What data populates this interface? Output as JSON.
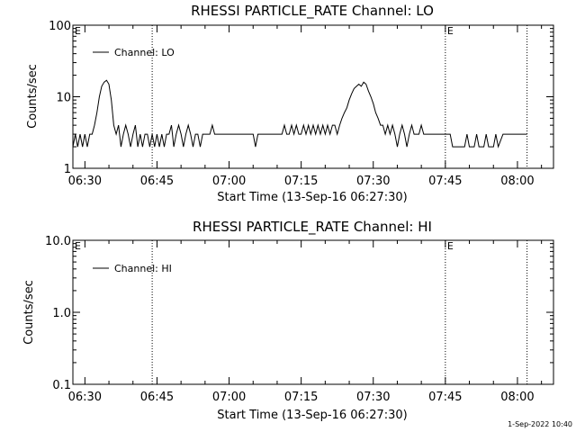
{
  "footer_timestamp": "1-Sep-2022 10:40",
  "chart_data": [
    {
      "type": "line",
      "title": "RHESSI PARTICLE_RATE Channel: LO",
      "xlabel": "Start Time (13-Sep-16 06:27:30)",
      "ylabel": "Counts/sec",
      "yscale": "log",
      "ylim": [
        1,
        100
      ],
      "y_ticks": [
        "1",
        "10",
        "100"
      ],
      "x_ticks": [
        "06:30",
        "06:45",
        "07:00",
        "07:15",
        "07:30",
        "07:45",
        "08:00"
      ],
      "xlim": [
        "06:27:30",
        "08:07:30"
      ],
      "grid": false,
      "legend": "top-left",
      "markers": [
        {
          "label": "E",
          "time": "06:27:30"
        },
        {
          "label": "",
          "time": "06:44:00"
        },
        {
          "label": "E",
          "time": "07:45:00"
        },
        {
          "label": "",
          "time": "08:02:00"
        }
      ],
      "series": [
        {
          "name": "Channel: LO",
          "color": "#000000",
          "points": [
            [
              "06:27:30",
              2
            ],
            [
              "06:28:00",
              3
            ],
            [
              "06:28:30",
              2
            ],
            [
              "06:29:00",
              3
            ],
            [
              "06:29:30",
              2
            ],
            [
              "06:30:00",
              3
            ],
            [
              "06:30:30",
              2
            ],
            [
              "06:31:00",
              3
            ],
            [
              "06:31:30",
              3
            ],
            [
              "06:32:00",
              4
            ],
            [
              "06:32:30",
              6
            ],
            [
              "06:33:00",
              10
            ],
            [
              "06:33:30",
              14
            ],
            [
              "06:34:00",
              16
            ],
            [
              "06:34:30",
              17
            ],
            [
              "06:35:00",
              15
            ],
            [
              "06:35:30",
              9
            ],
            [
              "06:36:00",
              4
            ],
            [
              "06:36:30",
              3
            ],
            [
              "06:37:00",
              4
            ],
            [
              "06:37:30",
              2
            ],
            [
              "06:38:00",
              3
            ],
            [
              "06:38:30",
              4
            ],
            [
              "06:39:00",
              3
            ],
            [
              "06:39:30",
              2
            ],
            [
              "06:40:00",
              3
            ],
            [
              "06:40:30",
              4
            ],
            [
              "06:41:00",
              2
            ],
            [
              "06:41:30",
              3
            ],
            [
              "06:42:00",
              2
            ],
            [
              "06:42:30",
              3
            ],
            [
              "06:43:00",
              3
            ],
            [
              "06:43:30",
              2
            ],
            [
              "06:44:00",
              3
            ],
            [
              "06:44:30",
              2
            ],
            [
              "06:45:00",
              3
            ],
            [
              "06:45:30",
              2
            ],
            [
              "06:46:00",
              3
            ],
            [
              "06:46:30",
              2
            ],
            [
              "06:47:00",
              3
            ],
            [
              "06:47:30",
              3
            ],
            [
              "06:48:00",
              4
            ],
            [
              "06:48:30",
              2
            ],
            [
              "06:49:00",
              3
            ],
            [
              "06:49:30",
              4
            ],
            [
              "06:50:00",
              3
            ],
            [
              "06:50:30",
              2
            ],
            [
              "06:51:00",
              3
            ],
            [
              "06:51:30",
              4
            ],
            [
              "06:52:00",
              3
            ],
            [
              "06:52:30",
              2
            ],
            [
              "06:53:00",
              3
            ],
            [
              "06:53:30",
              3
            ],
            [
              "06:54:00",
              2
            ],
            [
              "06:54:30",
              3
            ],
            [
              "06:55:00",
              3
            ],
            [
              "06:55:30",
              3
            ],
            [
              "06:56:00",
              3
            ],
            [
              "06:56:30",
              4
            ],
            [
              "06:57:00",
              3
            ],
            [
              "06:57:30",
              3
            ],
            [
              "06:58:00",
              3
            ],
            [
              "06:58:30",
              3
            ],
            [
              "06:59:00",
              3
            ],
            [
              "07:00:00",
              3
            ],
            [
              "07:01:00",
              3
            ],
            [
              "07:02:00",
              3
            ],
            [
              "07:03:00",
              3
            ],
            [
              "07:04:00",
              3
            ],
            [
              "07:05:00",
              3
            ],
            [
              "07:05:30",
              2
            ],
            [
              "07:06:00",
              3
            ],
            [
              "07:07:00",
              3
            ],
            [
              "07:08:00",
              3
            ],
            [
              "07:09:00",
              3
            ],
            [
              "07:10:00",
              3
            ],
            [
              "07:11:00",
              3
            ],
            [
              "07:11:30",
              4
            ],
            [
              "07:12:00",
              3
            ],
            [
              "07:12:30",
              3
            ],
            [
              "07:13:00",
              4
            ],
            [
              "07:13:30",
              3
            ],
            [
              "07:14:00",
              4
            ],
            [
              "07:14:30",
              3
            ],
            [
              "07:15:00",
              3
            ],
            [
              "07:15:30",
              4
            ],
            [
              "07:16:00",
              3
            ],
            [
              "07:16:30",
              4
            ],
            [
              "07:17:00",
              3
            ],
            [
              "07:17:30",
              4
            ],
            [
              "07:18:00",
              3
            ],
            [
              "07:18:30",
              4
            ],
            [
              "07:19:00",
              3
            ],
            [
              "07:19:30",
              4
            ],
            [
              "07:20:00",
              3
            ],
            [
              "07:20:30",
              4
            ],
            [
              "07:21:00",
              3
            ],
            [
              "07:21:30",
              4
            ],
            [
              "07:22:00",
              4
            ],
            [
              "07:22:30",
              3
            ],
            [
              "07:23:00",
              4
            ],
            [
              "07:23:30",
              5
            ],
            [
              "07:24:00",
              6
            ],
            [
              "07:24:30",
              7
            ],
            [
              "07:25:00",
              9
            ],
            [
              "07:25:30",
              11
            ],
            [
              "07:26:00",
              13
            ],
            [
              "07:26:30",
              14
            ],
            [
              "07:27:00",
              15
            ],
            [
              "07:27:30",
              14
            ],
            [
              "07:28:00",
              16
            ],
            [
              "07:28:30",
              15
            ],
            [
              "07:29:00",
              12
            ],
            [
              "07:29:30",
              10
            ],
            [
              "07:30:00",
              8
            ],
            [
              "07:30:30",
              6
            ],
            [
              "07:31:00",
              5
            ],
            [
              "07:31:30",
              4
            ],
            [
              "07:32:00",
              4
            ],
            [
              "07:32:30",
              3
            ],
            [
              "07:33:00",
              4
            ],
            [
              "07:33:30",
              3
            ],
            [
              "07:34:00",
              4
            ],
            [
              "07:34:30",
              3
            ],
            [
              "07:35:00",
              2
            ],
            [
              "07:35:30",
              3
            ],
            [
              "07:36:00",
              4
            ],
            [
              "07:36:30",
              3
            ],
            [
              "07:37:00",
              2
            ],
            [
              "07:37:30",
              3
            ],
            [
              "07:38:00",
              4
            ],
            [
              "07:38:30",
              3
            ],
            [
              "07:39:00",
              3
            ],
            [
              "07:39:30",
              3
            ],
            [
              "07:40:00",
              4
            ],
            [
              "07:40:30",
              3
            ],
            [
              "07:41:00",
              3
            ],
            [
              "07:42:00",
              3
            ],
            [
              "07:43:00",
              3
            ],
            [
              "07:44:00",
              3
            ],
            [
              "07:45:00",
              3
            ],
            [
              "07:46:00",
              3
            ],
            [
              "07:46:30",
              2
            ],
            [
              "07:47:00",
              2
            ],
            [
              "07:48:00",
              2
            ],
            [
              "07:49:00",
              2
            ],
            [
              "07:49:30",
              3
            ],
            [
              "07:50:00",
              2
            ],
            [
              "07:51:00",
              2
            ],
            [
              "07:51:30",
              3
            ],
            [
              "07:52:00",
              2
            ],
            [
              "07:53:00",
              2
            ],
            [
              "07:53:30",
              3
            ],
            [
              "07:54:00",
              2
            ],
            [
              "07:55:00",
              2
            ],
            [
              "07:55:30",
              3
            ],
            [
              "07:56:00",
              2
            ],
            [
              "07:57:00",
              3
            ],
            [
              "07:58:00",
              3
            ],
            [
              "07:59:00",
              3
            ],
            [
              "08:00:00",
              3
            ],
            [
              "08:01:00",
              3
            ],
            [
              "08:02:00",
              3
            ]
          ]
        }
      ]
    },
    {
      "type": "line",
      "title": "RHESSI PARTICLE_RATE Channel: HI",
      "xlabel": "Start Time (13-Sep-16 06:27:30)",
      "ylabel": "Counts/sec",
      "yscale": "log",
      "ylim": [
        0.1,
        10
      ],
      "y_ticks": [
        "0.1",
        "1.0",
        "10.0"
      ],
      "x_ticks": [
        "06:30",
        "06:45",
        "07:00",
        "07:15",
        "07:30",
        "07:45",
        "08:00"
      ],
      "xlim": [
        "06:27:30",
        "08:07:30"
      ],
      "grid": false,
      "legend": "top-left",
      "markers": [
        {
          "label": "E",
          "time": "06:27:30"
        },
        {
          "label": "",
          "time": "06:44:00"
        },
        {
          "label": "E",
          "time": "07:45:00"
        },
        {
          "label": "",
          "time": "08:02:00"
        }
      ],
      "series": [
        {
          "name": "Channel: HI",
          "color": "#000000",
          "points": []
        }
      ]
    }
  ]
}
